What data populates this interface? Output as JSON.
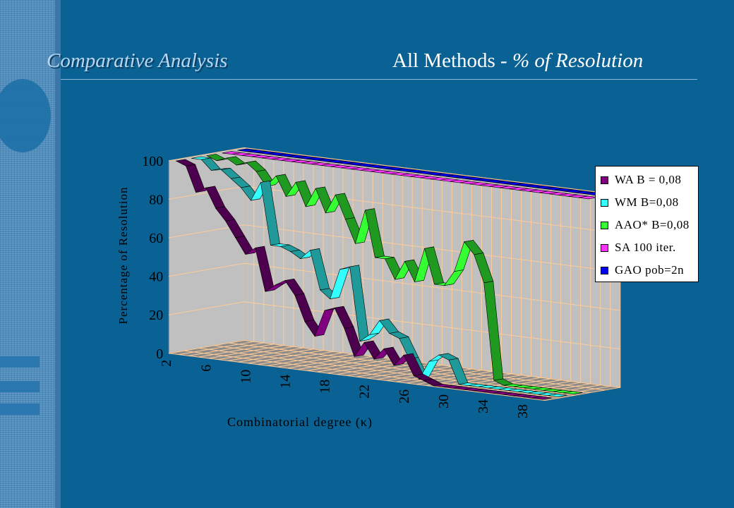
{
  "slide": {
    "title_left": "Comparative Analysis",
    "title_right_plain": "All Methods - ",
    "title_right_italic": "% of Resolution"
  },
  "chart_data": {
    "type": "line",
    "subtype": "3d-ribbon",
    "title": "",
    "xlabel": "Combinatorial degree (κ)",
    "ylabel": "Percentage of Resolution",
    "ylim": [
      0,
      100
    ],
    "yticks": [
      0,
      20,
      40,
      60,
      80,
      100
    ],
    "x": [
      2,
      3,
      4,
      5,
      6,
      7,
      8,
      9,
      10,
      11,
      12,
      13,
      14,
      15,
      16,
      17,
      18,
      19,
      20,
      21,
      22,
      23,
      24,
      25,
      26,
      27,
      28,
      29,
      30,
      31,
      32,
      33,
      34,
      35,
      36,
      37,
      38,
      39
    ],
    "xtick_labels": [
      "2",
      "6",
      "10",
      "14",
      "18",
      "22",
      "26",
      "30",
      "34",
      "38"
    ],
    "grid": true,
    "legend_position": "right",
    "series": [
      {
        "name": "WA B = 0,08",
        "color": "#800080",
        "values": [
          100,
          98,
          85,
          88,
          78,
          72,
          64,
          56,
          60,
          38,
          42,
          45,
          38,
          25,
          18,
          32,
          34,
          24,
          10,
          18,
          10,
          16,
          8,
          14,
          4,
          2,
          0,
          0,
          0,
          0,
          0,
          0,
          0,
          0,
          0,
          0,
          0,
          0
        ]
      },
      {
        "name": "WM B=0,08",
        "color": "#33ffff",
        "values": [
          100,
          100,
          95,
          96,
          92,
          88,
          82,
          92,
          60,
          60,
          58,
          55,
          60,
          40,
          36,
          52,
          54,
          16,
          20,
          28,
          22,
          20,
          10,
          0,
          10,
          14,
          12,
          0,
          0,
          0,
          0,
          0,
          0,
          0,
          0,
          0,
          0,
          0
        ]
      },
      {
        "name": "AAO* B=0,08",
        "color": "#33ff33",
        "values": [
          100,
          98,
          100,
          97,
          99,
          95,
          88,
          94,
          84,
          92,
          80,
          90,
          78,
          88,
          76,
          64,
          82,
          58,
          58,
          48,
          58,
          48,
          66,
          48,
          48,
          56,
          72,
          66,
          52,
          2,
          0,
          0,
          0,
          0,
          0,
          0,
          0,
          0
        ]
      },
      {
        "name": "SA 100 iter.",
        "color": "#ff33ff",
        "values": [
          100,
          100,
          100,
          100,
          100,
          100,
          100,
          100,
          100,
          100,
          100,
          100,
          100,
          100,
          100,
          100,
          100,
          100,
          100,
          100,
          100,
          100,
          100,
          100,
          100,
          100,
          100,
          100,
          100,
          100,
          100,
          100,
          100,
          100,
          100,
          100,
          100,
          100
        ]
      },
      {
        "name": "GAO pob=2n",
        "color": "#0000ee",
        "values": [
          100,
          100,
          100,
          100,
          100,
          100,
          100,
          100,
          100,
          100,
          100,
          100,
          100,
          100,
          100,
          100,
          100,
          100,
          100,
          100,
          100,
          100,
          100,
          100,
          100,
          100,
          100,
          100,
          100,
          100,
          100,
          100,
          100,
          100,
          100,
          100,
          100,
          100
        ]
      }
    ]
  }
}
